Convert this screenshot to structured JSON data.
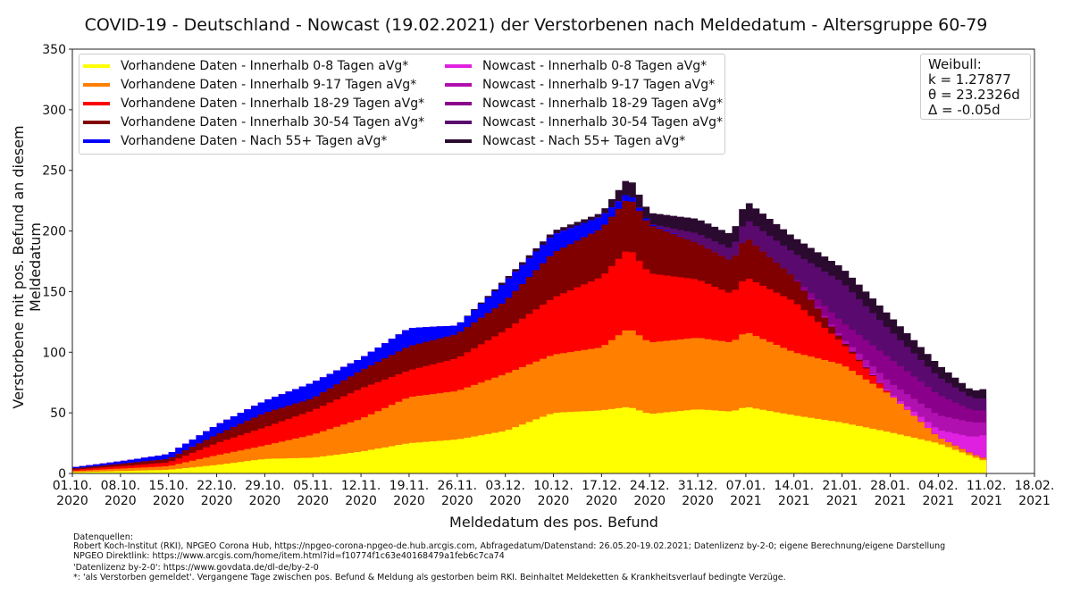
{
  "chart_data": {
    "type": "area",
    "title": "COVID-19 - Deutschland - Nowcast (19.02.2021) der Verstorbenen nach Meldedatum - Altersgruppe 60-79",
    "xlabel": "Meldedatum des pos. Befund",
    "ylabel": "Verstorbene mit pos. Befund an diesem Meldedatum",
    "ylim": [
      0,
      350
    ],
    "yticks": [
      "0",
      "50",
      "100",
      "150",
      "200",
      "250",
      "300",
      "350"
    ],
    "xlim_days": [
      0,
      140
    ],
    "xticks": [
      {
        "day": 0,
        "line1": "01.10.",
        "line2": "2020"
      },
      {
        "day": 7,
        "line1": "08.10.",
        "line2": "2020"
      },
      {
        "day": 14,
        "line1": "15.10.",
        "line2": "2020"
      },
      {
        "day": 21,
        "line1": "22.10.",
        "line2": "2020"
      },
      {
        "day": 28,
        "line1": "29.10.",
        "line2": "2020"
      },
      {
        "day": 35,
        "line1": "05.11.",
        "line2": "2020"
      },
      {
        "day": 42,
        "line1": "12.11.",
        "line2": "2020"
      },
      {
        "day": 49,
        "line1": "19.11.",
        "line2": "2020"
      },
      {
        "day": 56,
        "line1": "26.11.",
        "line2": "2020"
      },
      {
        "day": 63,
        "line1": "03.12.",
        "line2": "2020"
      },
      {
        "day": 70,
        "line1": "10.12.",
        "line2": "2020"
      },
      {
        "day": 77,
        "line1": "17.12.",
        "line2": "2020"
      },
      {
        "day": 84,
        "line1": "24.12.",
        "line2": "2020"
      },
      {
        "day": 91,
        "line1": "31.12.",
        "line2": "2020"
      },
      {
        "day": 98,
        "line1": "07.01.",
        "line2": "2021"
      },
      {
        "day": 105,
        "line1": "14.01.",
        "line2": "2021"
      },
      {
        "day": 112,
        "line1": "21.01.",
        "line2": "2021"
      },
      {
        "day": 119,
        "line1": "28.01.",
        "line2": "2021"
      },
      {
        "day": 126,
        "line1": "04.02.",
        "line2": "2021"
      },
      {
        "day": 133,
        "line1": "11.02.",
        "line2": "2021"
      },
      {
        "day": 140,
        "line1": "18.02.",
        "line2": "2021"
      }
    ],
    "last_data_day": 133,
    "series_note": "cumulative top of each stacked layer at control days; interpolated to daily steps",
    "control_days": [
      0,
      7,
      14,
      21,
      28,
      35,
      42,
      49,
      56,
      63,
      70,
      77,
      81,
      84,
      91,
      96,
      98,
      105,
      112,
      119,
      126,
      131,
      133
    ],
    "series": [
      {
        "name": "Vorhandene Daten - Innerhalb 0-8 Tagen aVg*",
        "color": "#ffff00",
        "cum": [
          1,
          2,
          3,
          7,
          12,
          13,
          18,
          25,
          28,
          35,
          50,
          52,
          55,
          49,
          53,
          51,
          55,
          48,
          42,
          34,
          25,
          14,
          10
        ]
      },
      {
        "name": "Vorhandene Daten - Innerhalb 9-17 Tagen aVg*",
        "color": "#ff7f00",
        "cum": [
          2,
          4,
          6,
          15,
          23,
          32,
          45,
          63,
          68,
          82,
          98,
          104,
          120,
          108,
          112,
          108,
          117,
          100,
          90,
          65,
          30,
          16,
          12
        ]
      },
      {
        "name": "Vorhandene Daten - Innerhalb 18-29 Tagen aVg*",
        "color": "#ff0000",
        "cum": [
          3,
          6,
          9,
          25,
          38,
          52,
          70,
          85,
          95,
          118,
          145,
          162,
          186,
          165,
          160,
          148,
          162,
          142,
          108,
          65,
          30,
          16,
          12
        ]
      },
      {
        "name": "Vorhandene Daten - Innerhalb 30-54 Tagen aVg*",
        "color": "#800000",
        "cum": [
          4,
          8,
          12,
          32,
          50,
          62,
          85,
          105,
          115,
          142,
          182,
          202,
          228,
          205,
          190,
          175,
          195,
          162,
          110,
          65,
          30,
          16,
          12
        ]
      },
      {
        "name": "Vorhandene Daten - Nach 55+ Tagen aVg*",
        "color": "#0000ff",
        "cum": [
          5,
          10,
          16,
          40,
          60,
          75,
          95,
          120,
          122,
          158,
          197,
          212,
          232,
          206,
          190,
          175,
          195,
          162,
          110,
          65,
          30,
          16,
          12
        ]
      },
      {
        "name": "Nowcast - Innerhalb 0-8 Tagen aVg*",
        "color": "#e020e0",
        "cum": [
          5,
          10,
          16,
          40,
          60,
          75,
          95,
          120,
          122,
          158,
          197,
          212,
          232,
          206,
          190,
          175,
          195,
          162,
          110,
          66,
          36,
          30,
          32
        ]
      },
      {
        "name": "Nowcast - Innerhalb 9-17 Tagen aVg*",
        "color": "#b010b0",
        "cum": [
          5,
          10,
          16,
          40,
          60,
          75,
          95,
          120,
          122,
          158,
          197,
          212,
          232,
          206,
          190,
          175,
          195,
          162,
          112,
          75,
          48,
          42,
          42
        ]
      },
      {
        "name": "Nowcast - Innerhalb 18-29 Tagen aVg*",
        "color": "#8b008b",
        "cum": [
          5,
          10,
          16,
          40,
          60,
          75,
          95,
          120,
          122,
          158,
          197,
          212,
          232,
          206,
          190,
          175,
          195,
          162,
          125,
          95,
          65,
          52,
          52
        ]
      },
      {
        "name": "Nowcast - Innerhalb 30-54 Tagen aVg*",
        "color": "#5a0a6e",
        "cum": [
          5,
          10,
          16,
          40,
          60,
          75,
          95,
          120,
          122,
          158,
          197,
          212,
          232,
          206,
          198,
          185,
          210,
          182,
          158,
          118,
          80,
          62,
          62
        ]
      },
      {
        "name": "Nowcast - Nach 55+ Tagen aVg*",
        "color": "#2b0a30",
        "cum": [
          5,
          10,
          16,
          40,
          60,
          75,
          95,
          120,
          122,
          160,
          200,
          215,
          245,
          215,
          210,
          197,
          225,
          195,
          170,
          130,
          90,
          68,
          70
        ]
      }
    ]
  },
  "weibull": {
    "title": "Weibull:",
    "k": "k = 1.27877",
    "theta": "θ = 23.2326d",
    "delta": "Δ = -0.05d"
  },
  "footer": {
    "line1": "Datenquellen:",
    "line2": "Robert Koch-Institut (RKI), NPGEO Corona Hub, https://npgeo-corona-npgeo-de.hub.arcgis.com, Abfragedatum/Datenstand: 26.05.20-19.02.2021; Datenlizenz by-2-0; eigene Berechnung/eigene Darstellung",
    "line3": "NPGEO Direktlink: https://www.arcgis.com/home/item.html?id=f10774f1c63e40168479a1feb6c7ca74",
    "line4": "'Datenlizenz by-2-0': https://www.govdata.de/dl-de/by-2-0",
    "line5": "*: 'als Verstorben gemeldet'. Vergangene Tage zwischen pos. Befund & Meldung als gestorben beim RKI. Beinhaltet Meldeketten & Krankheitsverlauf bedingte Verzüge."
  }
}
